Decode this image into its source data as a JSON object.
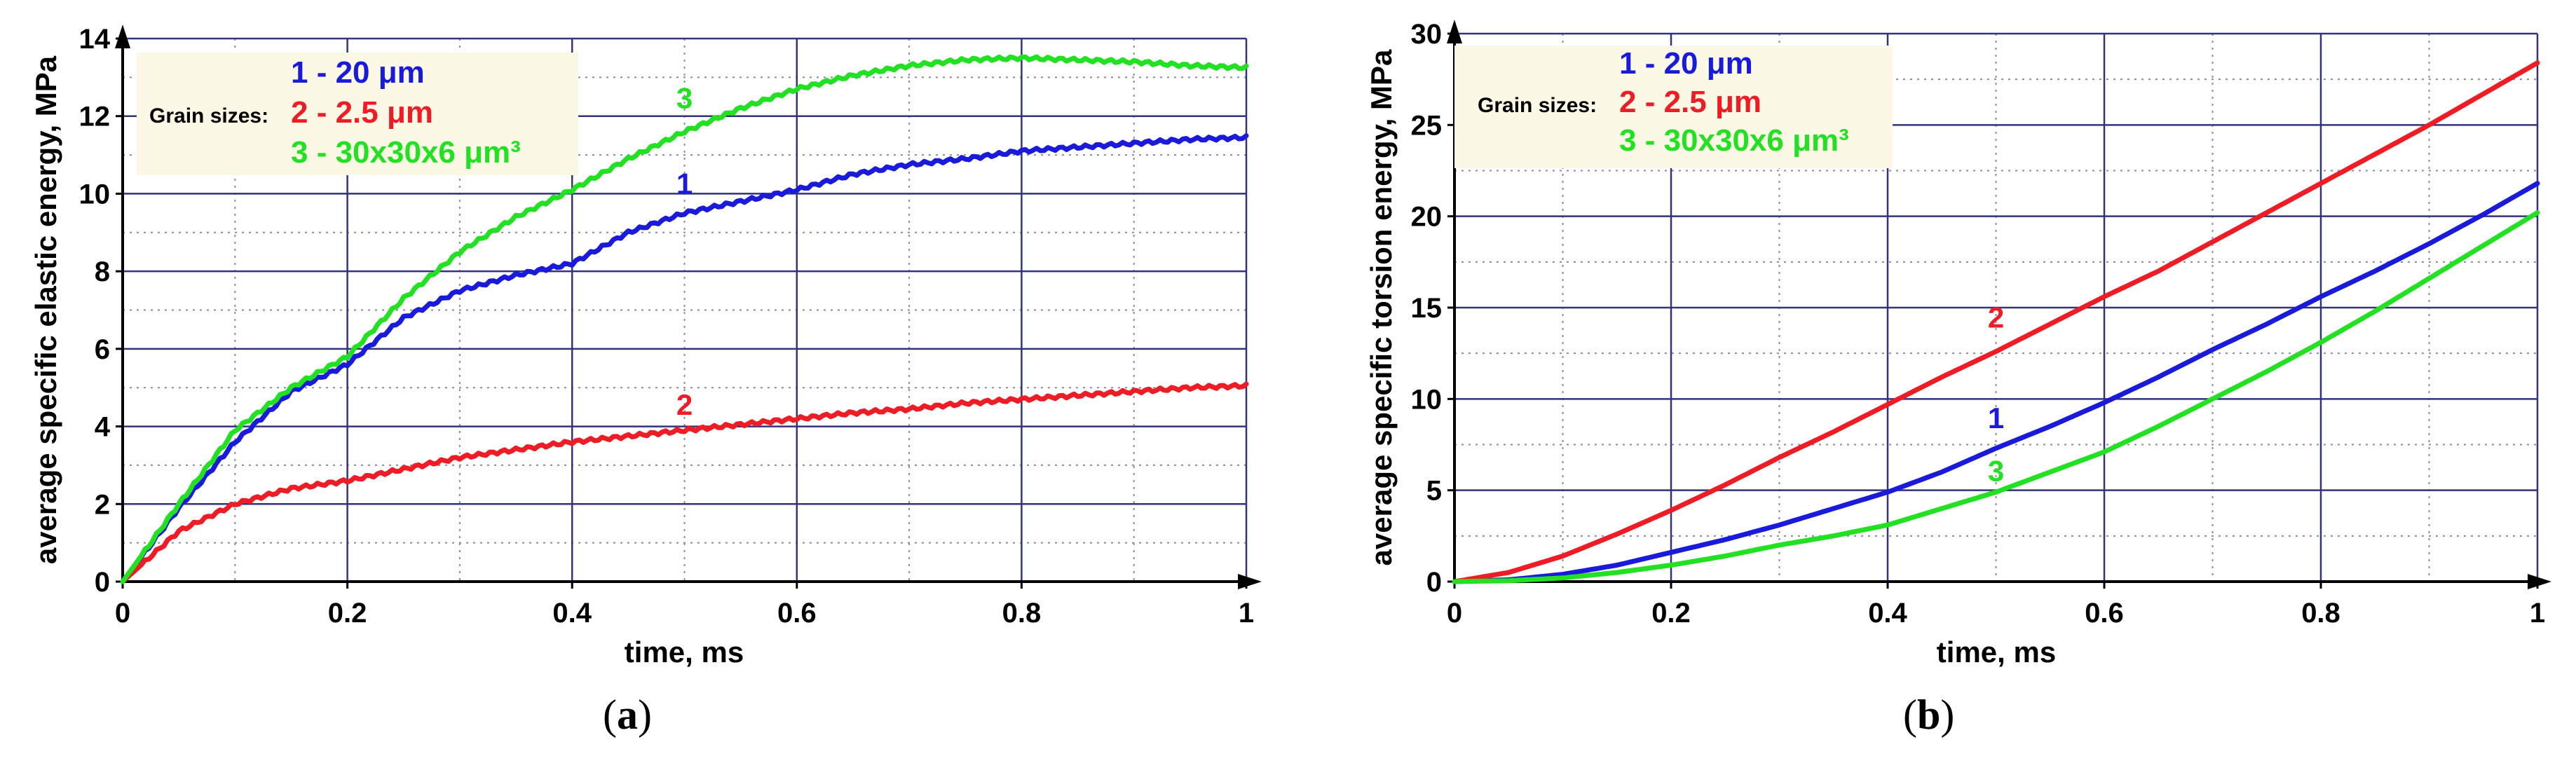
{
  "colors": {
    "series1": "#1a1adb",
    "series2": "#ee1c24",
    "series3": "#22e022",
    "grid_major": "#33337a",
    "grid_minor": "#8a8aa8",
    "legend_bg": "#fbf9e6",
    "axis": "#000000"
  },
  "chart_data": [
    {
      "type": "line",
      "panel_label": "a",
      "xlabel": "time, ms",
      "ylabel": "average specific elastic energy, MPa",
      "xlim": [
        0,
        1
      ],
      "ylim": [
        0,
        14
      ],
      "xticks": [
        0,
        0.2,
        0.4,
        0.6,
        0.8,
        1
      ],
      "xtick_labels": [
        "0",
        "0.2",
        "0.4",
        "0.6",
        "0.8",
        "1"
      ],
      "yticks": [
        0,
        2,
        4,
        6,
        8,
        10,
        12,
        14
      ],
      "ytick_labels": [
        "0",
        "2",
        "4",
        "6",
        "8",
        "10",
        "12",
        "14"
      ],
      "grid": true,
      "legend": {
        "position": "top-left",
        "heading": "Grain sizes:",
        "entries": [
          "1 - 20 μm",
          "2 - 2.5 μm",
          "3 - 30x30x6 μm³"
        ]
      },
      "series": [
        {
          "name": "1",
          "label": "1",
          "color_key": "series1",
          "x": [
            0,
            0.05,
            0.1,
            0.15,
            0.2,
            0.25,
            0.3,
            0.35,
            0.4,
            0.45,
            0.5,
            0.55,
            0.6,
            0.65,
            0.7,
            0.75,
            0.8,
            0.85,
            0.9,
            0.95,
            1.0
          ],
          "y": [
            0,
            1.9,
            3.6,
            4.9,
            5.6,
            6.8,
            7.5,
            7.9,
            8.2,
            9.0,
            9.5,
            9.8,
            10.1,
            10.5,
            10.75,
            10.9,
            11.1,
            11.2,
            11.3,
            11.4,
            11.45
          ]
        },
        {
          "name": "2",
          "label": "2",
          "color_key": "series2",
          "x": [
            0,
            0.05,
            0.1,
            0.15,
            0.2,
            0.25,
            0.3,
            0.35,
            0.4,
            0.45,
            0.5,
            0.55,
            0.6,
            0.65,
            0.7,
            0.75,
            0.8,
            0.85,
            0.9,
            0.95,
            1.0
          ],
          "y": [
            0,
            1.3,
            2.0,
            2.4,
            2.6,
            2.9,
            3.2,
            3.4,
            3.6,
            3.75,
            3.9,
            4.05,
            4.2,
            4.35,
            4.45,
            4.6,
            4.7,
            4.8,
            4.9,
            5.0,
            5.05
          ]
        },
        {
          "name": "3",
          "label": "3",
          "color_key": "series3",
          "x": [
            0,
            0.05,
            0.1,
            0.15,
            0.2,
            0.25,
            0.3,
            0.35,
            0.4,
            0.45,
            0.5,
            0.55,
            0.6,
            0.65,
            0.7,
            0.75,
            0.8,
            0.85,
            0.9,
            0.95,
            1.0
          ],
          "y": [
            0,
            2.0,
            3.9,
            5.0,
            5.8,
            7.3,
            8.5,
            9.4,
            10.1,
            10.9,
            11.6,
            12.2,
            12.7,
            13.05,
            13.3,
            13.45,
            13.5,
            13.45,
            13.4,
            13.3,
            13.25
          ]
        }
      ],
      "curve_labels": [
        {
          "text": "3",
          "x": 0.5,
          "y": 12.2,
          "color_key": "series3"
        },
        {
          "text": "1",
          "x": 0.5,
          "y": 10.0,
          "color_key": "series1"
        },
        {
          "text": "2",
          "x": 0.5,
          "y": 4.3,
          "color_key": "series2"
        }
      ]
    },
    {
      "type": "line",
      "panel_label": "b",
      "xlabel": "time, ms",
      "ylabel": "average specific torsion energy, MPa",
      "xlim": [
        0,
        1
      ],
      "ylim": [
        0,
        30
      ],
      "xticks": [
        0,
        0.2,
        0.4,
        0.6,
        0.8,
        1
      ],
      "xtick_labels": [
        "0",
        "0.2",
        "0.4",
        "0.6",
        "0.8",
        "1"
      ],
      "yticks": [
        0,
        5,
        10,
        15,
        20,
        25,
        30
      ],
      "ytick_labels": [
        "0",
        "5",
        "10",
        "15",
        "20",
        "25",
        "30"
      ],
      "grid": true,
      "legend": {
        "position": "top-left",
        "heading": "Grain sizes:",
        "entries": [
          "1 - 20 μm",
          "2 - 2.5 μm",
          "3 - 30x30x6 μm³"
        ]
      },
      "series": [
        {
          "name": "1",
          "label": "1",
          "color_key": "series1",
          "x": [
            0,
            0.05,
            0.1,
            0.15,
            0.2,
            0.25,
            0.3,
            0.35,
            0.4,
            0.45,
            0.5,
            0.55,
            0.6,
            0.65,
            0.7,
            0.75,
            0.8,
            0.85,
            0.9,
            0.95,
            1.0
          ],
          "y": [
            0,
            0.1,
            0.4,
            0.9,
            1.6,
            2.3,
            3.1,
            4.0,
            4.9,
            6.0,
            7.3,
            8.5,
            9.8,
            11.2,
            12.7,
            14.1,
            15.6,
            17.0,
            18.5,
            20.1,
            21.8
          ]
        },
        {
          "name": "2",
          "label": "2",
          "color_key": "series2",
          "x": [
            0,
            0.05,
            0.1,
            0.15,
            0.2,
            0.25,
            0.3,
            0.35,
            0.4,
            0.45,
            0.5,
            0.55,
            0.6,
            0.65,
            0.7,
            0.75,
            0.8,
            0.85,
            0.9,
            0.95,
            1.0
          ],
          "y": [
            0,
            0.5,
            1.4,
            2.6,
            3.9,
            5.3,
            6.8,
            8.2,
            9.7,
            11.2,
            12.6,
            14.1,
            15.6,
            17.0,
            18.6,
            20.2,
            21.8,
            23.4,
            25.0,
            26.7,
            28.4
          ]
        },
        {
          "name": "3",
          "label": "3",
          "color_key": "series3",
          "x": [
            0,
            0.05,
            0.1,
            0.15,
            0.2,
            0.25,
            0.3,
            0.35,
            0.4,
            0.45,
            0.5,
            0.55,
            0.6,
            0.65,
            0.7,
            0.75,
            0.8,
            0.85,
            0.9,
            0.95,
            1.0
          ],
          "y": [
            0,
            0.05,
            0.2,
            0.5,
            0.9,
            1.4,
            2.0,
            2.5,
            3.1,
            4.0,
            4.9,
            6.0,
            7.1,
            8.5,
            10.0,
            11.5,
            13.1,
            14.8,
            16.6,
            18.4,
            20.2
          ]
        }
      ],
      "curve_labels": [
        {
          "text": "2",
          "x": 0.5,
          "y": 13.9,
          "color_key": "series2"
        },
        {
          "text": "1",
          "x": 0.5,
          "y": 8.4,
          "color_key": "series1"
        },
        {
          "text": "3",
          "x": 0.5,
          "y": 5.5,
          "color_key": "series3"
        }
      ]
    }
  ]
}
